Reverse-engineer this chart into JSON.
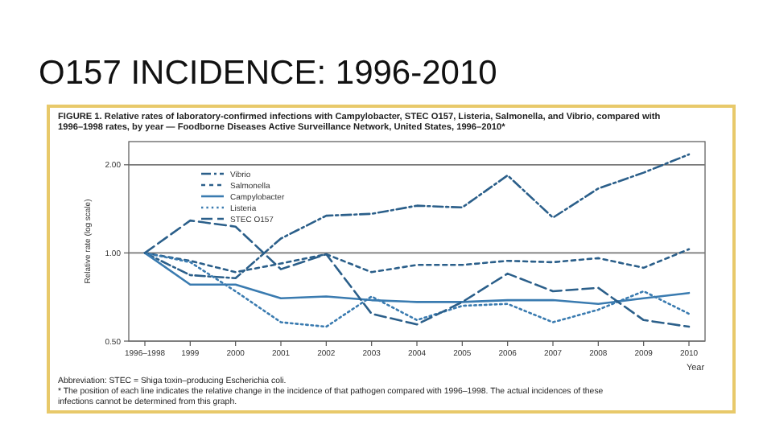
{
  "chart_data": {
    "type": "line",
    "title": "O157 INCIDENCE: 1996-2010",
    "subtitle": "FIGURE 1. Relative rates of laboratory-confirmed infections with Campylobacter, STEC O157, Listeria, Salmonella, and Vibrio, compared with 1996–1998 rates, by year — Foodborne Diseases Active Surveillance Network, United States, 1996–2010*",
    "xlabel": "Year",
    "ylabel": "Relative rate (log scale)",
    "annotations": [
      "Abbreviation: STEC = Shiga toxin–producing Escherichia coli.",
      "* The position of each line indicates the relative change in the incidence of that pathogen compared with 1996–1998. The actual incidences of these infections cannot be determined from this graph."
    ],
    "categories": [
      "1996–1998",
      "1999",
      "2000",
      "2001",
      "2002",
      "2003",
      "2004",
      "2005",
      "2006",
      "2007",
      "2008",
      "2009",
      "2010"
    ],
    "log": true,
    "ylim": [
      0.5,
      2.4
    ],
    "yticks": [
      {
        "value": 0.5,
        "label": "0.50"
      },
      {
        "value": 1,
        "label": "1.00"
      },
      {
        "value": 2,
        "label": "2.00"
      }
    ],
    "grid": "y",
    "legend": "top left",
    "series": [
      {
        "name": "Vibrio",
        "color": "#2b5f8a",
        "line_style": "dashed",
        "values": [
          1.0,
          0.84,
          0.82,
          1.12,
          1.34,
          1.36,
          1.45,
          1.43,
          1.84,
          1.32,
          1.66,
          1.88,
          2.17
        ]
      },
      {
        "name": "Salmonella",
        "color": "#2b5f8a",
        "line_style": "dashed",
        "values": [
          1.0,
          0.94,
          0.86,
          0.92,
          0.99,
          0.86,
          0.91,
          0.91,
          0.94,
          0.93,
          0.96,
          0.89,
          1.03
        ]
      },
      {
        "name": "Campylobacter",
        "color": "#3a7bb0",
        "line_style": "solid",
        "values": [
          1.0,
          0.78,
          0.78,
          0.7,
          0.71,
          0.69,
          0.68,
          0.68,
          0.69,
          0.69,
          0.67,
          0.7,
          0.73
        ]
      },
      {
        "name": "Listeria",
        "color": "#3a7bb0",
        "line_style": "dotted",
        "values": [
          1.0,
          0.93,
          0.74,
          0.58,
          0.56,
          0.71,
          0.59,
          0.66,
          0.67,
          0.58,
          0.64,
          0.74,
          0.62
        ]
      },
      {
        "name": "STEC O157",
        "color": "#2b5f8a",
        "line_style": "dashed",
        "values": [
          1.0,
          1.29,
          1.23,
          0.88,
          0.99,
          0.62,
          0.57,
          0.68,
          0.85,
          0.74,
          0.76,
          0.59,
          0.56
        ]
      }
    ]
  }
}
